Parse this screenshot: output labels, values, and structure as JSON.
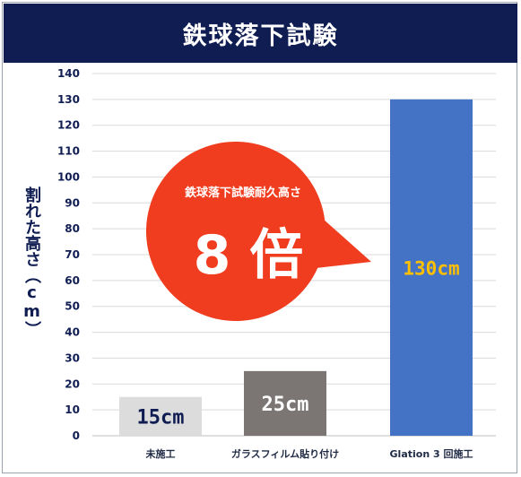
{
  "chart_data": {
    "type": "bar",
    "title": "鉄球落下試験",
    "ylabel": "割れた高さ（cm）",
    "categories": [
      "未施工",
      "ガラスフィルム貼り付け",
      "Glation 3 回施工"
    ],
    "values": [
      15,
      25,
      130
    ],
    "data_labels": [
      "15cm",
      "25cm",
      "130cm"
    ],
    "ylim": [
      0,
      140
    ],
    "yticks": [
      "0",
      "10",
      "20",
      "30",
      "40",
      "50",
      "60",
      "70",
      "80",
      "90",
      "100",
      "110",
      "120",
      "130",
      "140"
    ],
    "grid": true,
    "bar_colors": [
      "#dcdcdc",
      "#7b7574",
      "#4472c4"
    ],
    "label_colors": [
      "#0f1d52",
      "#ffffff",
      "#ffc000"
    ],
    "annotation": {
      "subtitle": "鉄球落下試験耐久高さ",
      "main": "8 倍",
      "color": "#f03d1f"
    }
  },
  "colors": {
    "title_bg": "#0f1d52",
    "axis_text": "#0f1d52",
    "grid": "#d9d9d9"
  }
}
